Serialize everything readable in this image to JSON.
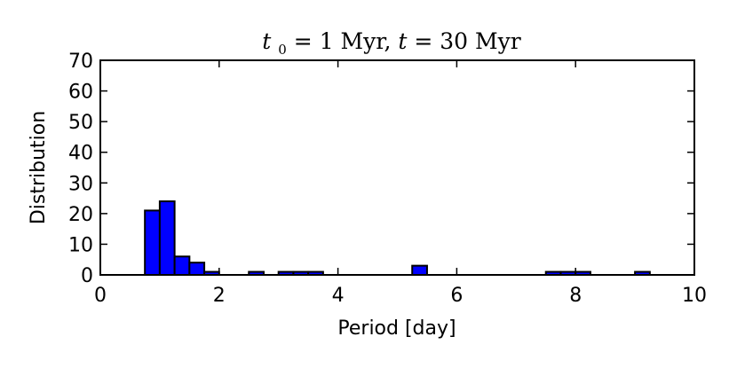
{
  "chart_data": {
    "type": "bar",
    "title": {
      "t0_symbol": "t",
      "t0_subscript": "0",
      "t0_value": " = 1 Myr, ",
      "t_symbol": "t",
      "t_value": " = 30 Myr"
    },
    "xlabel": "Period [day]",
    "ylabel": "Distribution",
    "xlim": [
      0,
      10
    ],
    "ylim": [
      0,
      70
    ],
    "x_ticks": [
      0,
      2,
      4,
      6,
      8,
      10
    ],
    "y_ticks": [
      0,
      10,
      20,
      30,
      40,
      50,
      60,
      70
    ],
    "x_tick_labels": [
      "0",
      "2",
      "4",
      "6",
      "8",
      "10"
    ],
    "y_tick_labels": [
      "0",
      "10",
      "20",
      "30",
      "40",
      "50",
      "60",
      "70"
    ],
    "grid": false,
    "bar_color": "#0000ff",
    "bar_edge_color": "#000000",
    "bin_width": 0.25,
    "bins": [
      {
        "x0": 0.75,
        "value": 21
      },
      {
        "x0": 1.0,
        "value": 24
      },
      {
        "x0": 1.25,
        "value": 6
      },
      {
        "x0": 1.5,
        "value": 4
      },
      {
        "x0": 1.75,
        "value": 1
      },
      {
        "x0": 2.5,
        "value": 1
      },
      {
        "x0": 3.0,
        "value": 1
      },
      {
        "x0": 3.25,
        "value": 1
      },
      {
        "x0": 3.5,
        "value": 1
      },
      {
        "x0": 5.25,
        "value": 3
      },
      {
        "x0": 7.5,
        "value": 1
      },
      {
        "x0": 7.75,
        "value": 1
      },
      {
        "x0": 8.0,
        "value": 1
      },
      {
        "x0": 9.0,
        "value": 1
      }
    ]
  }
}
